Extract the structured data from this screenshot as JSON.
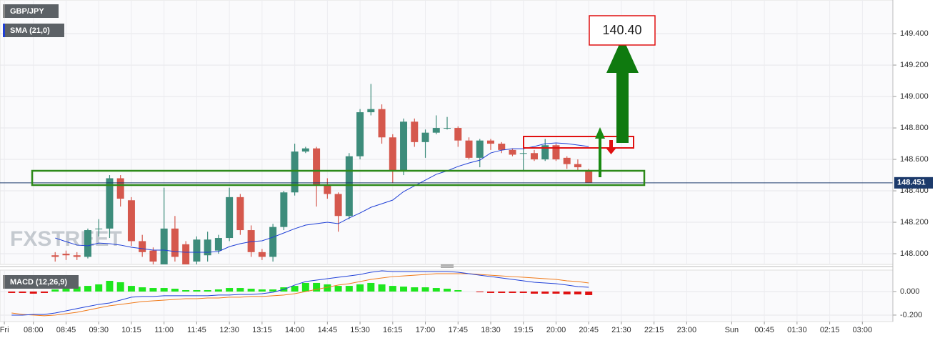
{
  "chart_data": [
    {
      "type": "candlestick",
      "title": "GBP/JPY",
      "watermark": "FXSTREET",
      "annotation": "140.40",
      "x": [
        510,
        525,
        540,
        555,
        570,
        585,
        600,
        615,
        630,
        645,
        660,
        675,
        690,
        705,
        720,
        735,
        750,
        765,
        780,
        795,
        810,
        825,
        840,
        855,
        870,
        885,
        900,
        915,
        930,
        945,
        960,
        975,
        990,
        1005,
        1020,
        1035,
        1050,
        1065,
        1080,
        1095,
        1110,
        1125,
        1140,
        1155,
        1170,
        1185,
        1200,
        1215,
        1230,
        1245
      ],
      "open": [
        147.99,
        148.0,
        147.99,
        147.98,
        148.16,
        148.16,
        148.48,
        148.34,
        148.08,
        148.02,
        147.93,
        148.16,
        148.06,
        147.95,
        147.99,
        148.02,
        148.1,
        148.36,
        148.15,
        148.01,
        147.98,
        148.17,
        148.39,
        148.65,
        148.67,
        148.44,
        148.38,
        148.24,
        148.62,
        148.9,
        148.92,
        148.74,
        148.53,
        148.84,
        148.71,
        148.77,
        148.8,
        148.8,
        148.72,
        148.61,
        148.72,
        148.7,
        148.66,
        148.64,
        148.64,
        148.6,
        148.69,
        148.61,
        148.57,
        148.53
      ],
      "high": [
        148.01,
        148.02,
        148.01,
        148.16,
        148.22,
        148.5,
        148.5,
        148.36,
        148.12,
        148.04,
        148.42,
        148.24,
        148.08,
        148.11,
        148.14,
        148.12,
        148.42,
        148.38,
        148.18,
        148.03,
        148.19,
        148.4,
        148.7,
        148.68,
        148.68,
        148.48,
        148.39,
        148.64,
        148.92,
        149.08,
        148.95,
        148.76,
        148.86,
        148.86,
        148.79,
        148.88,
        148.87,
        148.81,
        148.74,
        148.73,
        148.73,
        148.71,
        148.67,
        148.67,
        148.66,
        148.73,
        148.7,
        148.62,
        148.6,
        148.54
      ],
      "low": [
        147.95,
        147.96,
        147.96,
        147.97,
        148.11,
        148.1,
        148.3,
        148.05,
        147.98,
        147.93,
        147.9,
        147.95,
        147.9,
        147.92,
        147.95,
        148.0,
        148.08,
        148.12,
        147.98,
        147.96,
        147.95,
        148.15,
        148.37,
        148.64,
        148.3,
        148.35,
        148.14,
        148.22,
        148.6,
        148.88,
        148.7,
        148.45,
        148.5,
        148.68,
        148.61,
        148.76,
        148.79,
        148.68,
        148.6,
        148.55,
        148.66,
        148.64,
        148.62,
        148.53,
        148.59,
        148.59,
        148.59,
        148.54,
        148.53,
        148.45
      ],
      "close": [
        147.98,
        147.99,
        147.98,
        148.15,
        148.16,
        148.48,
        148.35,
        148.08,
        148.01,
        147.95,
        148.16,
        147.98,
        147.92,
        148.09,
        148.09,
        148.1,
        148.36,
        148.15,
        148.01,
        147.98,
        148.17,
        148.39,
        148.65,
        148.67,
        148.44,
        148.38,
        148.24,
        148.62,
        148.9,
        148.92,
        148.74,
        148.53,
        148.84,
        148.71,
        148.77,
        148.8,
        148.8,
        148.72,
        148.61,
        148.72,
        148.7,
        148.66,
        148.63,
        148.64,
        148.6,
        148.69,
        148.6,
        148.57,
        148.55,
        148.45
      ],
      "up_color": "#3d8c7b",
      "down_color": "#d5584d",
      "sma": {
        "name": "SMA (21,0)",
        "color": "#1f3fd6",
        "values": [
          148.1,
          148.077,
          148.055,
          148.05,
          148.068,
          148.064,
          148.055,
          148.041,
          148.032,
          148.023,
          148.023,
          148.014,
          148.009,
          148.009,
          148.009,
          148.014,
          148.045,
          148.064,
          148.077,
          148.082,
          148.105,
          148.132,
          148.159,
          148.182,
          148.191,
          148.2,
          148.191,
          148.227,
          148.259,
          148.295,
          148.318,
          148.341,
          148.395,
          148.432,
          148.468,
          148.505,
          148.527,
          148.555,
          148.577,
          148.595,
          148.641,
          148.659,
          148.668,
          148.668,
          148.682,
          148.7,
          148.705,
          148.7,
          148.691,
          148.682
        ]
      },
      "last_price": 148.451,
      "xlim": [
        434,
        1664
      ],
      "ylim": [
        147.932,
        149.614
      ],
      "yticks": [
        {
          "value": 148.0,
          "label": "148.000"
        },
        {
          "value": 148.2,
          "label": "148.200"
        },
        {
          "value": 148.4,
          "label": "148.400"
        },
        {
          "value": 148.6,
          "label": "148.600"
        },
        {
          "value": 148.8,
          "label": "148.800"
        },
        {
          "value": 149.0,
          "label": "149.000"
        },
        {
          "value": 149.2,
          "label": "149.200"
        },
        {
          "value": 149.4,
          "label": "149.400"
        }
      ],
      "grid": true
    },
    {
      "type": "macd",
      "title": "MACD (12,26,9)",
      "x": [
        450,
        465,
        480,
        495,
        510,
        525,
        540,
        555,
        570,
        585,
        600,
        615,
        630,
        645,
        660,
        675,
        690,
        705,
        720,
        735,
        750,
        765,
        780,
        795,
        810,
        825,
        840,
        855,
        870,
        885,
        900,
        915,
        930,
        945,
        960,
        975,
        990,
        1005,
        1020,
        1035,
        1050,
        1065,
        1080,
        1095,
        1110,
        1125,
        1140,
        1155,
        1170,
        1185,
        1200,
        1215,
        1230,
        1245
      ],
      "histogram": [
        -0.012,
        -0.012,
        -0.018,
        -0.012,
        0.018,
        0.03,
        0.042,
        0.048,
        0.061,
        0.091,
        0.079,
        0.048,
        0.036,
        0.03,
        0.03,
        0.024,
        0.012,
        0.012,
        0.012,
        0.018,
        0.03,
        0.03,
        0.024,
        0.018,
        0.018,
        0.036,
        0.048,
        0.073,
        0.073,
        0.061,
        0.048,
        0.048,
        0.061,
        0.073,
        0.061,
        0.048,
        0.042,
        0.036,
        0.036,
        0.03,
        0.024,
        0.012,
        0,
        -0.006,
        -0.012,
        -0.012,
        -0.012,
        -0.012,
        -0.018,
        -0.018,
        -0.018,
        -0.024,
        -0.024,
        -0.03
      ],
      "positive_color": "#1ee61e",
      "negative_color": "#e01010",
      "macd": {
        "color": "#2040d8",
        "values": [
          -0.2,
          -0.2,
          -0.194,
          -0.194,
          -0.182,
          -0.164,
          -0.145,
          -0.127,
          -0.109,
          -0.097,
          -0.073,
          -0.048,
          -0.042,
          -0.042,
          -0.036,
          -0.036,
          -0.036,
          -0.036,
          -0.036,
          -0.03,
          -0.03,
          -0.024,
          -0.024,
          -0.018,
          -0.006,
          0.018,
          0.055,
          0.085,
          0.097,
          0.109,
          0.121,
          0.133,
          0.145,
          0.164,
          0.176,
          0.17,
          0.17,
          0.17,
          0.17,
          0.17,
          0.17,
          0.164,
          0.152,
          0.139,
          0.127,
          0.115,
          0.103,
          0.091,
          0.079,
          0.073,
          0.067,
          0.055,
          0.042,
          0.036
        ]
      },
      "signal": {
        "color": "#f07a1a",
        "values": [
          -0.182,
          -0.194,
          -0.2,
          -0.206,
          -0.2,
          -0.188,
          -0.176,
          -0.158,
          -0.139,
          -0.121,
          -0.109,
          -0.097,
          -0.085,
          -0.079,
          -0.073,
          -0.067,
          -0.061,
          -0.061,
          -0.055,
          -0.055,
          -0.048,
          -0.048,
          -0.042,
          -0.042,
          -0.036,
          -0.03,
          -0.018,
          0,
          0.018,
          0.036,
          0.055,
          0.067,
          0.085,
          0.103,
          0.115,
          0.127,
          0.133,
          0.139,
          0.145,
          0.152,
          0.152,
          0.152,
          0.152,
          0.145,
          0.139,
          0.133,
          0.127,
          0.121,
          0.115,
          0.109,
          0.103,
          0.091,
          0.085,
          0.073
        ]
      },
      "xlim": [
        434,
        1664
      ],
      "ylim": [
        -0.255,
        0.182
      ],
      "yticks": [
        {
          "value": -0.2,
          "label": "-0.200"
        },
        {
          "value": 0,
          "label": "0.000"
        }
      ],
      "xticks": [
        {
          "value": 440,
          "label": "Fri"
        },
        {
          "value": 480,
          "label": "08:00"
        },
        {
          "value": 525,
          "label": "08:45"
        },
        {
          "value": 570,
          "label": "09:30"
        },
        {
          "value": 615,
          "label": "10:15"
        },
        {
          "value": 660,
          "label": "11:00"
        },
        {
          "value": 705,
          "label": "11:45"
        },
        {
          "value": 750,
          "label": "12:30"
        },
        {
          "value": 795,
          "label": "13:15"
        },
        {
          "value": 840,
          "label": "14:00"
        },
        {
          "value": 885,
          "label": "14:45"
        },
        {
          "value": 930,
          "label": "15:30"
        },
        {
          "value": 975,
          "label": "16:15"
        },
        {
          "value": 1020,
          "label": "17:00"
        },
        {
          "value": 1065,
          "label": "17:45"
        },
        {
          "value": 1110,
          "label": "18:30"
        },
        {
          "value": 1155,
          "label": "19:15"
        },
        {
          "value": 1200,
          "label": "20:00"
        },
        {
          "value": 1245,
          "label": "20:45"
        },
        {
          "value": 1290,
          "label": "21:30"
        },
        {
          "value": 1335,
          "label": "22:15"
        },
        {
          "value": 1380,
          "label": "23:00"
        },
        {
          "value": 1442,
          "label": "Sun"
        },
        {
          "value": 1487,
          "label": "00:45"
        },
        {
          "value": 1532,
          "label": "01:30"
        },
        {
          "value": 1577,
          "label": "02:15"
        },
        {
          "value": 1622,
          "label": "03:00"
        }
      ],
      "grid": true
    }
  ]
}
